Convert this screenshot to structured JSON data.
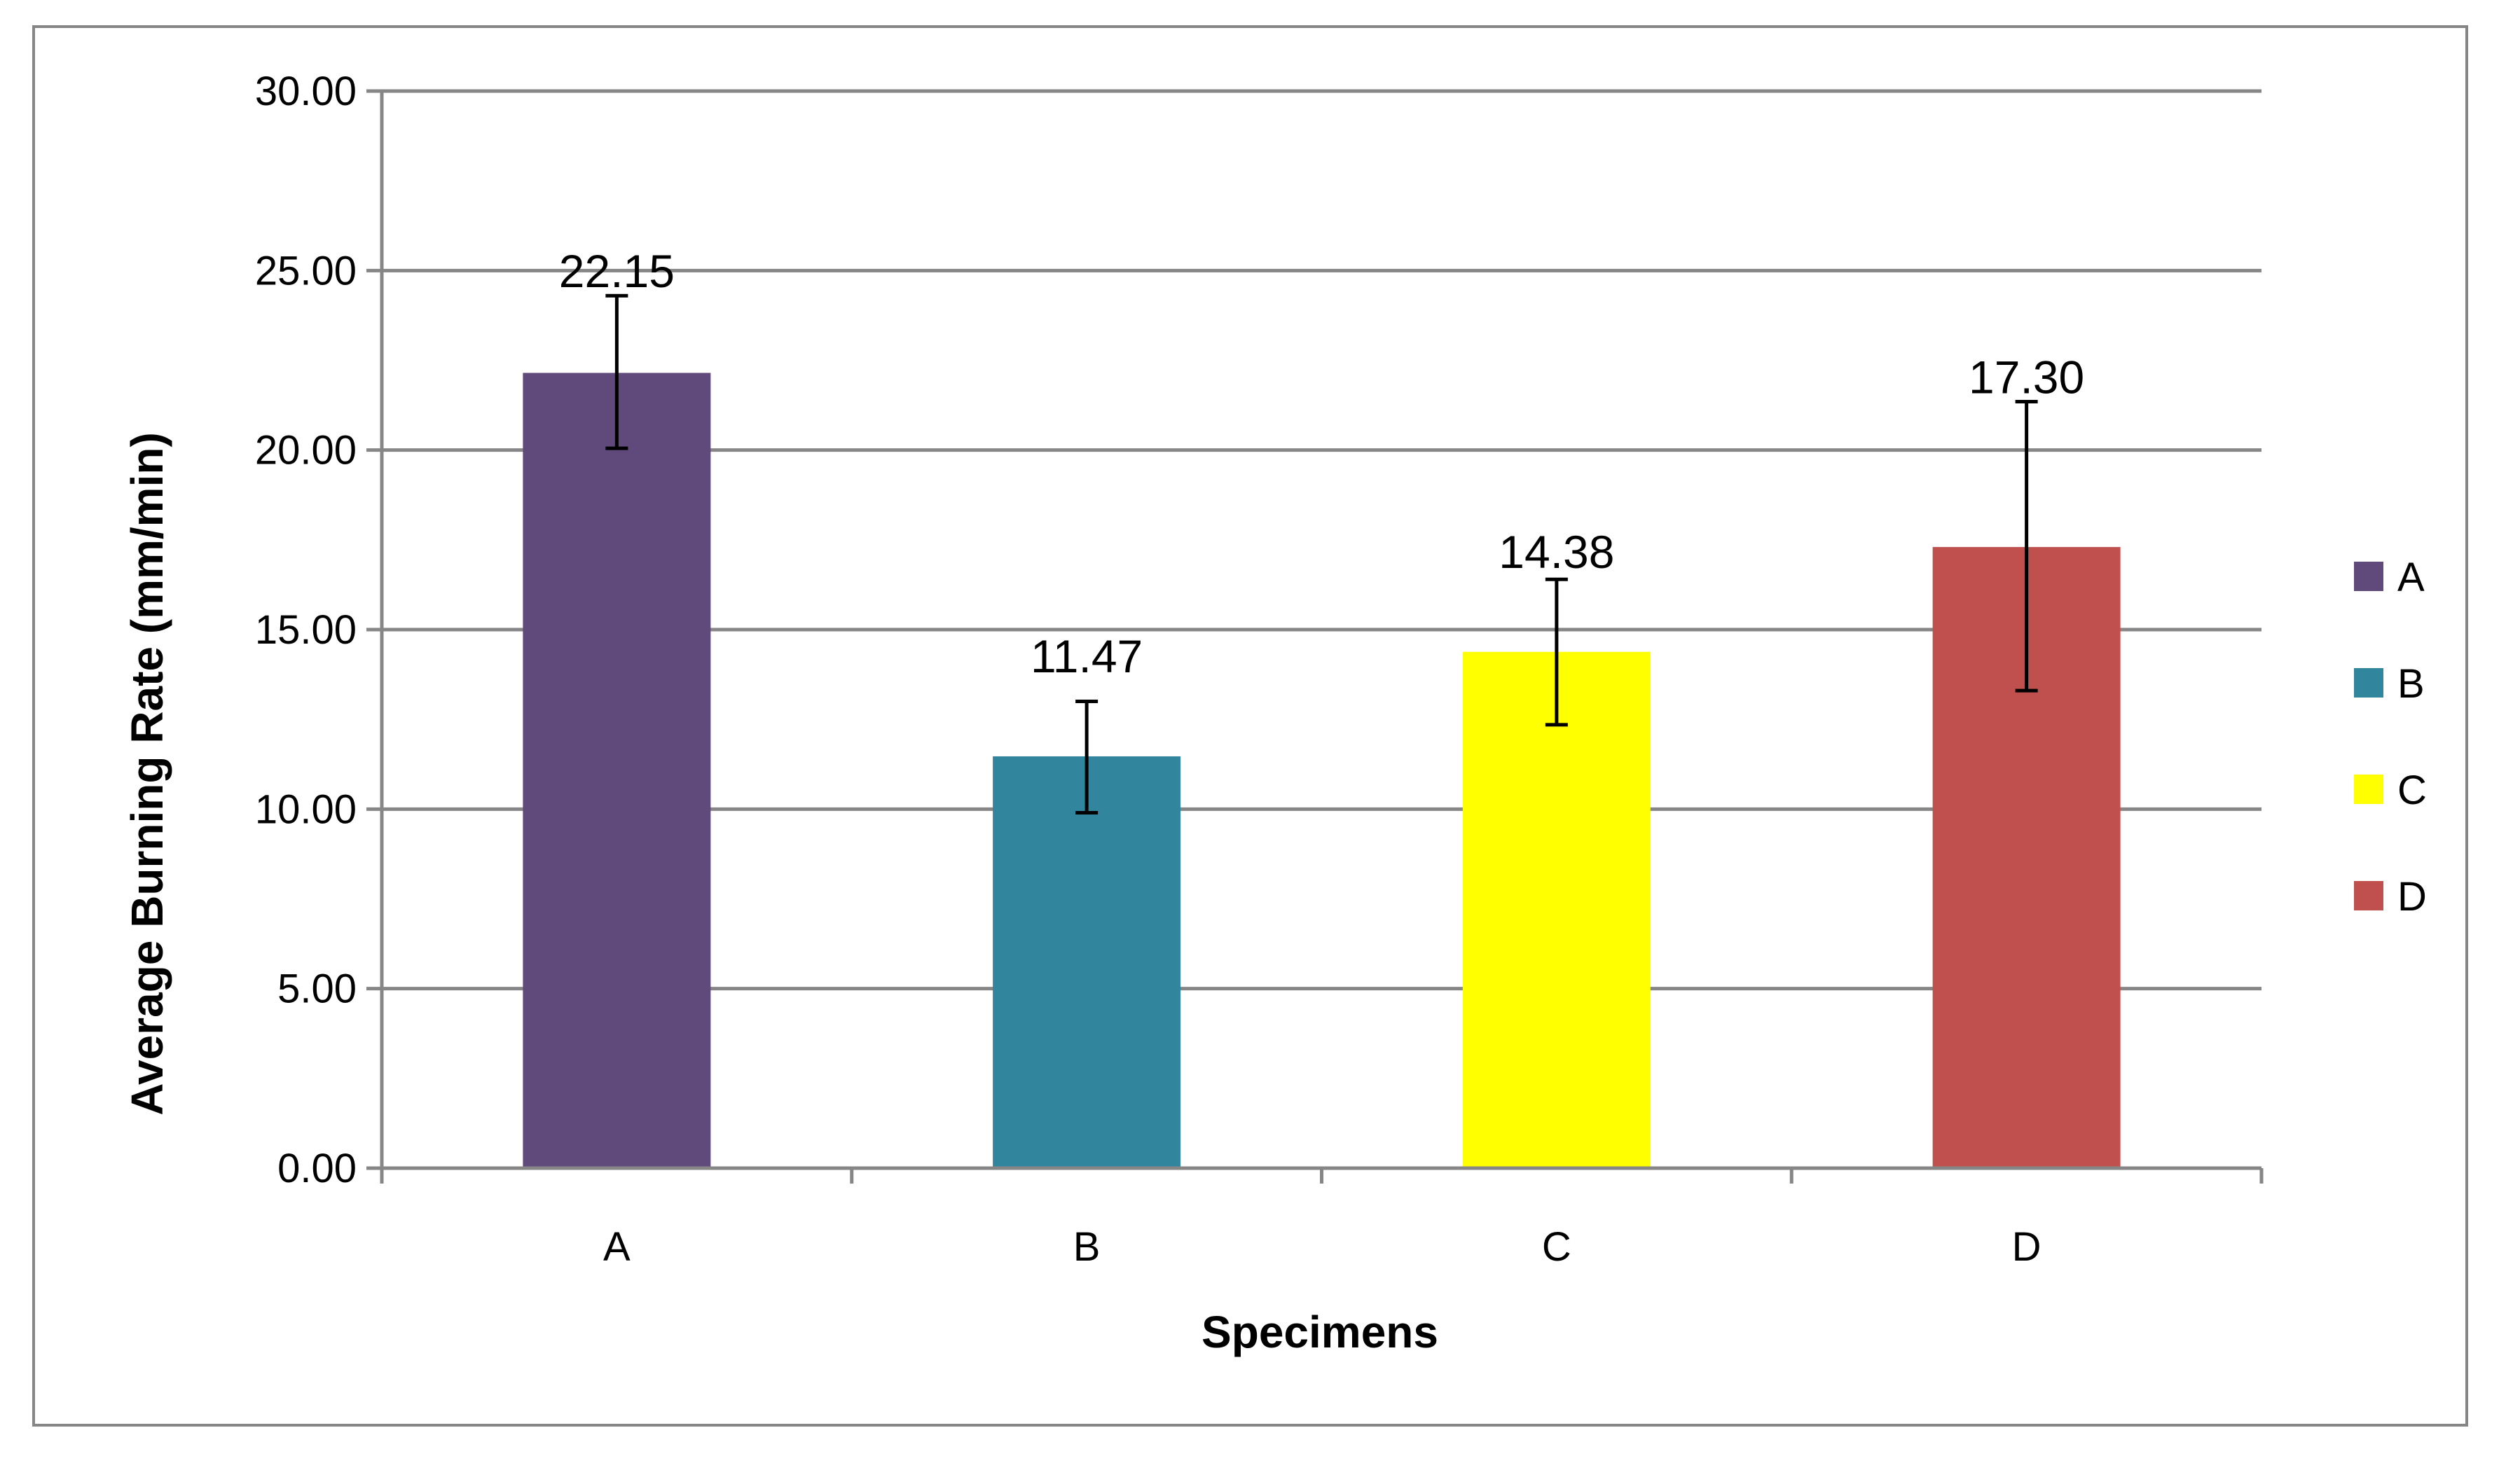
{
  "chart_data": {
    "type": "bar",
    "categories": [
      "A",
      "B",
      "C",
      "D"
    ],
    "values": [
      22.15,
      11.47,
      14.38,
      17.3
    ],
    "data_labels": [
      "22.15",
      "11.47",
      "14.38",
      "17.30"
    ],
    "error_bars": [
      {
        "low": 20.05,
        "high": 24.3
      },
      {
        "low": 9.9,
        "high": 13.0
      },
      {
        "low": 12.35,
        "high": 16.4
      },
      {
        "low": 13.3,
        "high": 21.35
      }
    ],
    "colors": [
      "#604a7b",
      "#31859c",
      "#ffff00",
      "#c0504d"
    ],
    "xlabel": "Specimens",
    "ylabel": "Average Burning Rate (mm/min)",
    "ylim": [
      0,
      30
    ],
    "yticks": [
      0,
      5,
      10,
      15,
      20,
      25,
      30
    ],
    "ytick_labels": [
      "0.00",
      "5.00",
      "10.00",
      "15.00",
      "20.00",
      "25.00",
      "30.00"
    ],
    "grid": true,
    "gridline_color": "#868686",
    "legend": {
      "placement": "right",
      "entries": [
        {
          "label": "A",
          "color": "#604a7b"
        },
        {
          "label": "B",
          "color": "#31859c"
        },
        {
          "label": "C",
          "color": "#ffff00"
        },
        {
          "label": "D",
          "color": "#c0504d"
        }
      ]
    }
  }
}
